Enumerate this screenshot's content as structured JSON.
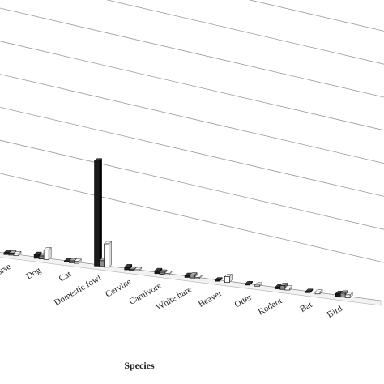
{
  "chart_data": {
    "type": "bar",
    "xlabel": "Species",
    "ylabel": "",
    "grid": true,
    "gridline_count": 8,
    "style": "3d-clustered",
    "categories": [
      "Horse",
      "Dog",
      "Cat",
      "Domestic fowl",
      "Cervine",
      "Carnivore",
      "White hare",
      "Beaver",
      "Otter",
      "Rodent",
      "Bat",
      "Bird"
    ],
    "visible_category_labels": [
      "orse",
      "Dog",
      "Cat",
      "Domestic fowl",
      "Cervine",
      "Carnivore",
      "White hare",
      "Beaver",
      "Otter",
      "Rodent",
      "Bat",
      "Bird"
    ],
    "series": [
      {
        "color": "#1a1a1a",
        "values": [
          0.1,
          0.2,
          0.05,
          5.4,
          0.15,
          0.15,
          0.1,
          0.05,
          0.05,
          0.1,
          0.05,
          0.15
        ]
      },
      {
        "color": "#8c8c8c",
        "values": [
          0.1,
          0.15,
          0.1,
          0.3,
          0.05,
          0.1,
          0.15,
          0.0,
          0.0,
          0.2,
          0.0,
          0.2
        ]
      },
      {
        "color": "#ffffff",
        "values": [
          0.1,
          0.5,
          0.1,
          1.2,
          0.05,
          0.05,
          0.05,
          0.3,
          0.05,
          0.1,
          0.1,
          0.15
        ]
      }
    ]
  }
}
